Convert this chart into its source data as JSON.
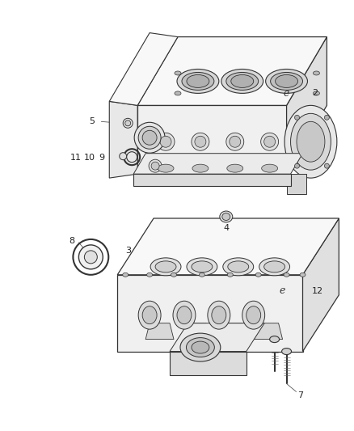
{
  "background_color": "#ffffff",
  "line_color": "#333333",
  "label_color": "#222222",
  "fig_width": 4.38,
  "fig_height": 5.33,
  "dpi": 100,
  "block_fill": "#f0f0f0",
  "block_fill_dark": "#e0e0e0",
  "block_fill_light": "#f8f8f8",
  "ring_fill": "#e8e8e8"
}
